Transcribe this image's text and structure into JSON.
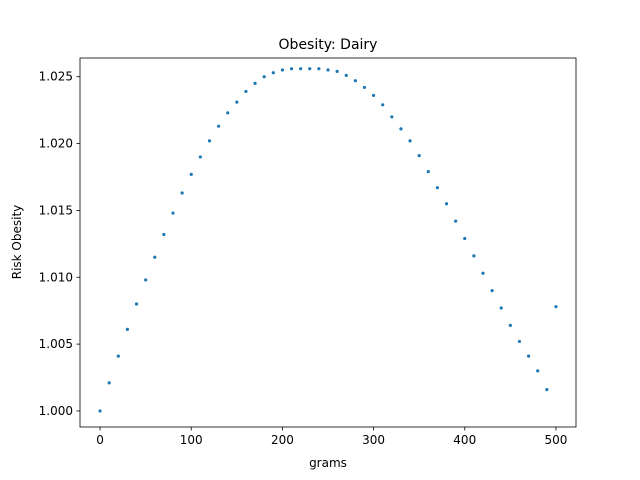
{
  "chart_data": {
    "type": "scatter",
    "title": "Obesity: Dairy",
    "xlabel": "grams",
    "ylabel": "Risk Obesity",
    "xlim": [
      -22,
      522
    ],
    "ylim": [
      0.9988,
      1.0264
    ],
    "x_ticks": [
      0,
      100,
      200,
      300,
      400,
      500
    ],
    "x_tick_labels": [
      "0",
      "100",
      "200",
      "300",
      "400",
      "500"
    ],
    "y_ticks": [
      1.0,
      1.005,
      1.01,
      1.015,
      1.02,
      1.025
    ],
    "y_tick_labels": [
      "1.000",
      "1.005",
      "1.010",
      "1.015",
      "1.020",
      "1.025"
    ],
    "grid": false,
    "series": [
      {
        "color": "#1f77b4",
        "x": [
          0,
          10,
          20,
          30,
          40,
          50,
          60,
          70,
          80,
          90,
          100,
          110,
          120,
          130,
          140,
          150,
          160,
          170,
          180,
          190,
          200,
          210,
          220,
          230,
          240,
          250,
          260,
          270,
          280,
          290,
          300,
          310,
          320,
          330,
          340,
          350,
          360,
          370,
          380,
          390,
          400,
          410,
          420,
          430,
          440,
          450,
          460,
          470,
          480,
          490,
          500
        ],
        "y": [
          1.0,
          1.0021,
          1.0041,
          1.0061,
          1.008,
          1.0098,
          1.0115,
          1.0132,
          1.0148,
          1.0163,
          1.0177,
          1.019,
          1.0202,
          1.0213,
          1.0223,
          1.0231,
          1.0239,
          1.0245,
          1.025,
          1.0253,
          1.0255,
          1.0256,
          1.0256,
          1.0256,
          1.0256,
          1.0255,
          1.0254,
          1.0251,
          1.0247,
          1.0242,
          1.0236,
          1.0229,
          1.022,
          1.0211,
          1.0202,
          1.0191,
          1.0179,
          1.0167,
          1.0155,
          1.0142,
          1.0129,
          1.0116,
          1.0103,
          1.009,
          1.0077,
          1.0064,
          1.0052,
          1.0041,
          1.003,
          1.0016,
          1.0078
        ]
      }
    ]
  }
}
